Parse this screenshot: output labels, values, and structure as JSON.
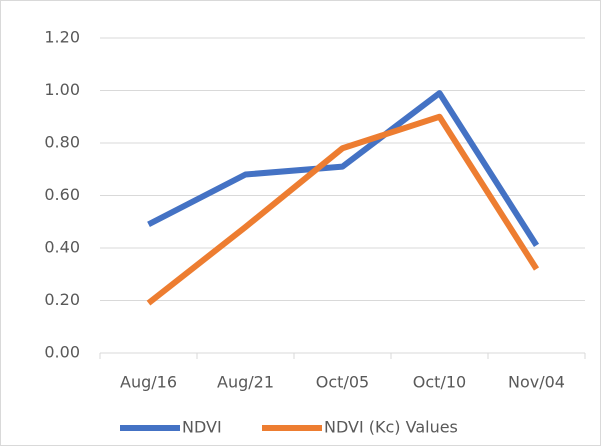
{
  "chart_data": {
    "type": "line",
    "categories": [
      "Aug/16",
      "Aug/21",
      "Oct/05",
      "Oct/10",
      "Nov/04"
    ],
    "series": [
      {
        "name": "NDVI",
        "color": "#4472c4",
        "values": [
          0.49,
          0.68,
          0.71,
          0.99,
          0.41
        ]
      },
      {
        "name": "NDVI (Kc) Values",
        "color": "#ed7d31",
        "values": [
          0.19,
          0.48,
          0.78,
          0.9,
          0.32
        ]
      }
    ],
    "ylim": [
      0,
      1.2
    ],
    "yticks": [
      {
        "value": 0,
        "label": "0.00"
      },
      {
        "value": 0.2,
        "label": "0.20"
      },
      {
        "value": 0.4,
        "label": "0.40"
      },
      {
        "value": 0.6,
        "label": "0.60"
      },
      {
        "value": 0.8,
        "label": "0.80"
      },
      {
        "value": 1.0,
        "label": "1.00"
      },
      {
        "value": 1.2,
        "label": "1.20"
      }
    ],
    "grid": true,
    "legend": "bottom"
  }
}
